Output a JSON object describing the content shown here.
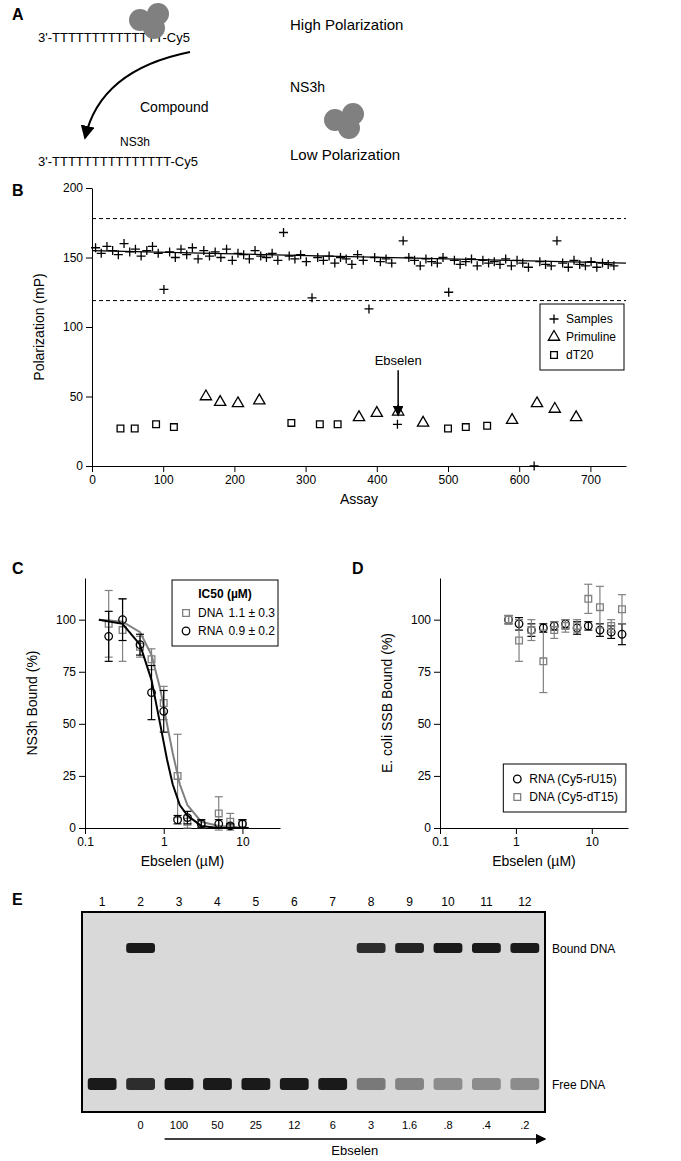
{
  "diagram": {
    "label": "A",
    "top_strand": "3'-TTTTTTTTTTTTTT-Cy5",
    "high": "High Polarization",
    "compound": "Compound",
    "protein_labels": [
      "NS3h",
      "NS3h"
    ],
    "low": "Low Polarization",
    "bottom_strand": "3'-TTTTTTTTTTTTTTT-Cy5"
  },
  "chart_data": [
    {
      "type": "scatter",
      "label": "B",
      "xlabel": "Assay",
      "ylabel": "Polarization (mP)",
      "xlim": [
        0,
        750
      ],
      "ylim": [
        0,
        200
      ],
      "xticks": [
        0,
        100,
        200,
        300,
        400,
        500,
        600,
        700
      ],
      "yticks": [
        0,
        50,
        100,
        150,
        200
      ],
      "legend": "right",
      "series": [
        {
          "name": "Samples",
          "color": "#000000",
          "marker": "plus",
          "x": [
            5,
            13,
            21,
            29,
            37,
            45,
            53,
            61,
            69,
            77,
            85,
            93,
            101,
            109,
            117,
            125,
            133,
            141,
            149,
            157,
            165,
            173,
            181,
            189,
            197,
            205,
            213,
            221,
            229,
            237,
            245,
            253,
            261,
            269,
            277,
            285,
            293,
            301,
            309,
            317,
            325,
            333,
            341,
            349,
            357,
            365,
            373,
            381,
            389,
            397,
            405,
            413,
            421,
            429,
            437,
            445,
            453,
            461,
            469,
            477,
            485,
            493,
            501,
            509,
            517,
            525,
            533,
            541,
            549,
            557,
            565,
            573,
            581,
            589,
            597,
            605,
            613,
            621,
            629,
            637,
            645,
            653,
            661,
            669,
            677,
            685,
            693,
            701,
            709,
            717,
            725,
            733
          ],
          "values": [
            157,
            153,
            158,
            155,
            152,
            160,
            154,
            156,
            151,
            155,
            158,
            153,
            127,
            154,
            150,
            156,
            152,
            157,
            149,
            155,
            151,
            154,
            150,
            156,
            148,
            153,
            152,
            149,
            155,
            151,
            150,
            153,
            148,
            168,
            151,
            149,
            152,
            147,
            121,
            150,
            148,
            151,
            146,
            150,
            149,
            145,
            152,
            148,
            113,
            150,
            147,
            149,
            146,
            30,
            162,
            150,
            148,
            144,
            149,
            147,
            146,
            150,
            125,
            148,
            145,
            147,
            149,
            144,
            148,
            146,
            147,
            145,
            149,
            144,
            148,
            146,
            143,
            0,
            147,
            145,
            144,
            162,
            146,
            143,
            148,
            145,
            144,
            147,
            143,
            146,
            145,
            144
          ]
        },
        {
          "name": "Primuline",
          "color": "#000000",
          "marker": "triangle",
          "x": [
            160,
            180,
            205,
            235,
            375,
            400,
            430,
            465,
            590,
            625,
            650,
            680
          ],
          "values": [
            50,
            46,
            45,
            47,
            35,
            38,
            39,
            31,
            33,
            45,
            41,
            35
          ]
        },
        {
          "name": "dT20",
          "color": "#000000",
          "marker": "square",
          "x": [
            40,
            60,
            90,
            115,
            280,
            320,
            345,
            500,
            525,
            555
          ],
          "values": [
            27,
            27,
            30,
            28,
            31,
            30,
            30,
            27,
            28,
            29
          ]
        }
      ],
      "threshold_lines": [
        178,
        119
      ],
      "trend_line": {
        "x": [
          0,
          750
        ],
        "values": [
          155,
          146
        ]
      },
      "annotations": [
        {
          "text": "Ebselen",
          "x": 430,
          "y": 30
        }
      ]
    },
    {
      "type": "scatter",
      "label": "C",
      "xlabel": "Ebselen (µM)",
      "ylabel": "NS3h Bound (%)",
      "log": "x",
      "xlim": [
        0.1,
        30
      ],
      "ylim": [
        0,
        120
      ],
      "xticks": [
        0.1,
        1,
        10
      ],
      "yticks": [
        0,
        25,
        50,
        75,
        100
      ],
      "legend": "upper right",
      "legend_title": "IC50 (µM)",
      "series": [
        {
          "name": "DNA",
          "ic50_label": "1.1 ± 0.3",
          "color": "#808080",
          "marker": "square",
          "x": [
            0.2,
            0.3,
            0.5,
            0.7,
            1.0,
            1.5,
            2,
            3,
            5,
            7,
            10
          ],
          "values": [
            98,
            95,
            87,
            81,
            60,
            25,
            3,
            2,
            7,
            3,
            2
          ],
          "errors": [
            16,
            15,
            5,
            5,
            8,
            20,
            3,
            2,
            8,
            4,
            2
          ],
          "fit_x": [
            0.15,
            0.3,
            0.5,
            0.7,
            0.9,
            1.1,
            1.3,
            1.6,
            2,
            3,
            5,
            12
          ],
          "fit_values": [
            100,
            99,
            94,
            83,
            67,
            50,
            36,
            21,
            11,
            3,
            1,
            0
          ]
        },
        {
          "name": "RNA",
          "ic50_label": "0.9 ± 0.2",
          "color": "#000000",
          "marker": "circle",
          "x": [
            0.2,
            0.3,
            0.5,
            0.7,
            1.0,
            1.5,
            2,
            3,
            5,
            7,
            10
          ],
          "values": [
            92,
            100,
            88,
            65,
            56,
            4,
            5,
            2,
            2,
            1,
            2
          ],
          "errors": [
            12,
            10,
            5,
            13,
            10,
            2,
            3,
            2,
            2,
            1,
            2
          ],
          "fit_x": [
            0.15,
            0.3,
            0.5,
            0.7,
            0.9,
            1.1,
            1.3,
            1.6,
            2,
            3,
            5,
            12
          ],
          "fit_values": [
            100,
            98,
            88,
            71,
            50,
            33,
            21,
            11,
            6,
            1,
            0,
            0
          ]
        }
      ]
    },
    {
      "type": "scatter",
      "label": "D",
      "xlabel": "Ebselen (µM)",
      "ylabel": "E. coli SSB Bound (%)",
      "log": "x",
      "xlim": [
        0.1,
        30
      ],
      "ylim": [
        0,
        120
      ],
      "xticks": [
        0.1,
        1,
        10
      ],
      "yticks": [
        0,
        25,
        50,
        75,
        100
      ],
      "legend": "lower right",
      "series": [
        {
          "name": "RNA (Cy5-rU15)",
          "color": "#000000",
          "marker": "circle",
          "x": [
            0.8,
            1.1,
            1.6,
            2.3,
            3.2,
            4.5,
            6.4,
            9,
            12.8,
            18,
            25
          ],
          "values": [
            100,
            98,
            95,
            96,
            97,
            98,
            96,
            97,
            95,
            94,
            93
          ],
          "errors": [
            2,
            3,
            3,
            2,
            2,
            2,
            3,
            2,
            3,
            3,
            5
          ]
        },
        {
          "name": "DNA (Cy5-dT15)",
          "color": "#808080",
          "marker": "square",
          "x": [
            0.8,
            1.1,
            1.6,
            2.3,
            3.2,
            4.5,
            6.4,
            9,
            12.8,
            18,
            25
          ],
          "values": [
            100,
            90,
            95,
            80,
            95,
            97,
            97,
            110,
            106,
            97,
            105
          ],
          "errors": [
            2,
            10,
            5,
            15,
            4,
            3,
            3,
            7,
            10,
            3,
            7
          ]
        }
      ]
    }
  ],
  "gel": {
    "label": "E",
    "lanes": [
      "1",
      "2",
      "3",
      "4",
      "5",
      "6",
      "7",
      "8",
      "9",
      "10",
      "11",
      "12"
    ],
    "concentrations": [
      null,
      "0",
      "100",
      "50",
      "25",
      "12",
      "6",
      "3",
      "1.6",
      ".8",
      ".4",
      ".2"
    ],
    "bound_intensity": [
      0,
      1,
      0,
      0,
      0,
      0,
      0,
      0.9,
      0.95,
      1,
      1,
      1
    ],
    "free_intensity": [
      1,
      0.9,
      1,
      1,
      1,
      1,
      1,
      0.5,
      0.45,
      0.4,
      0.4,
      0.4
    ],
    "band_labels": [
      "Bound DNA",
      "Free DNA"
    ],
    "axis_label": "Ebselen"
  }
}
